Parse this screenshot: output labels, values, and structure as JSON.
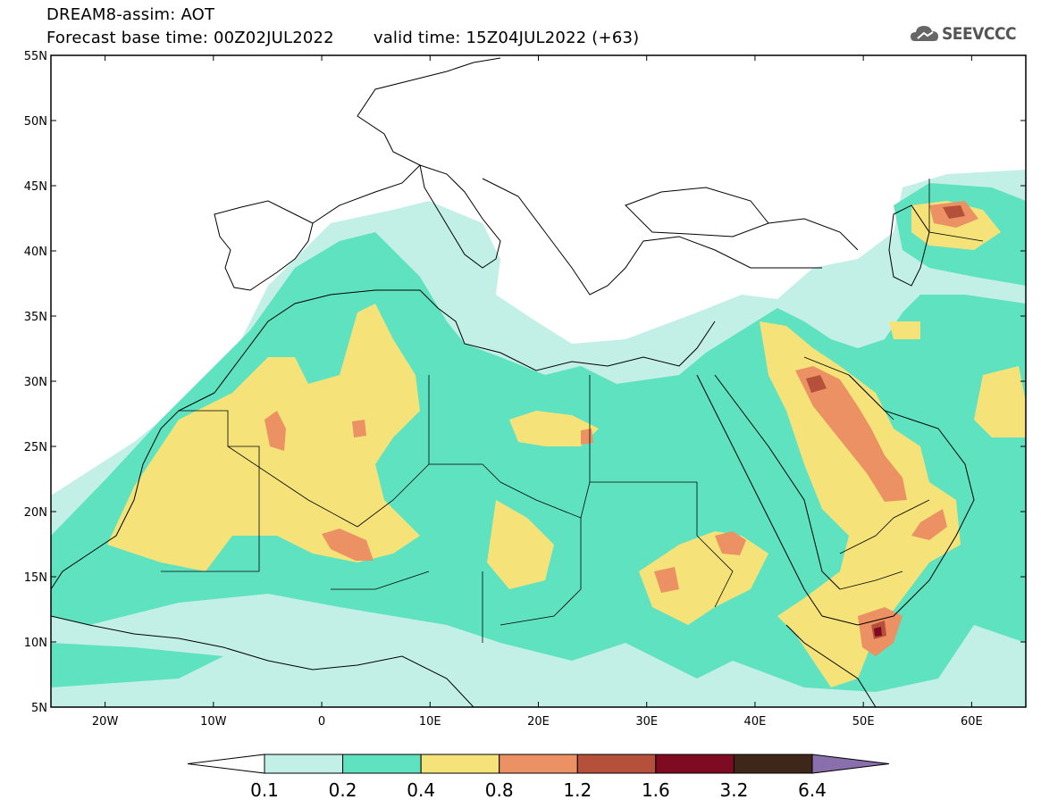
{
  "header": {
    "model_line": "DREAM8-assim: AOT",
    "base_time_label": "Forecast base time: 00Z02JUL2022",
    "valid_time_label": "valid time: 15Z04JUL2022 (+63)"
  },
  "logo": {
    "text": "SEEVCCC",
    "icon": "cloud-icon"
  },
  "map": {
    "lon_range": [
      -25,
      65
    ],
    "lat_range": [
      5,
      55
    ],
    "lon_ticks": [
      "20W",
      "10W",
      "0",
      "10E",
      "20E",
      "30E",
      "40E",
      "50E",
      "60E"
    ],
    "lat_ticks": [
      "55N",
      "50N",
      "45N",
      "40N",
      "35N",
      "30N",
      "25N",
      "20N",
      "15N",
      "10N",
      "5N"
    ]
  },
  "legend": {
    "labels": [
      "0.1",
      "0.2",
      "0.4",
      "0.8",
      "1.2",
      "1.6",
      "3.2",
      "6.4"
    ],
    "colors": [
      "#ffffff",
      "#c2efe6",
      "#5fe2c0",
      "#f5e37a",
      "#eb9163",
      "#b5503a",
      "#7e0b22",
      "#3e2719",
      "#8a6fad"
    ]
  }
}
